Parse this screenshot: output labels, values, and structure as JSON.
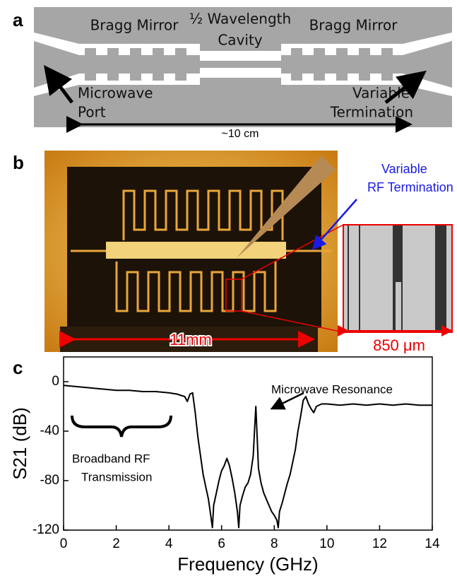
{
  "panel_a": {
    "label": "a",
    "left_mirror": "Bragg Mirror",
    "cavity": [
      "½ Wavelength",
      "Cavity"
    ],
    "right_mirror": "Bragg Mirror",
    "port": [
      "Microwave",
      "Port"
    ],
    "termination": [
      "Variable",
      "Termination"
    ],
    "length": "~10 cm"
  },
  "panel_b": {
    "label": "b",
    "termination": [
      "Variable",
      "RF Termination"
    ],
    "chip_size": "11mm",
    "zoom_size": "850 μm"
  },
  "chart_data": {
    "type": "line",
    "panel_label": "c",
    "xlabel": "Frequency (GHz)",
    "ylabel": "S21 (dB)",
    "color": "#000000",
    "annotations": [
      "Microwave Resonance",
      "Broadband RF",
      "Transmission"
    ],
    "xlim": [
      0,
      14
    ],
    "ylim": [
      -120,
      20
    ],
    "xticks": [
      0,
      2,
      4,
      6,
      8,
      10,
      12,
      14
    ],
    "yticks": [
      -120,
      -80,
      -40,
      0
    ],
    "x": [
      0,
      0.5,
      1,
      1.5,
      2,
      2.5,
      3,
      3.5,
      4,
      4.3,
      4.6,
      4.7,
      4.8,
      4.9,
      5.0,
      5.1,
      5.2,
      5.3,
      5.4,
      5.5,
      5.6,
      5.65,
      5.7,
      5.8,
      5.9,
      6.0,
      6.1,
      6.2,
      6.3,
      6.4,
      6.5,
      6.6,
      6.65,
      6.7,
      6.8,
      6.9,
      7.0,
      7.1,
      7.2,
      7.25,
      7.3,
      7.35,
      7.4,
      7.5,
      7.6,
      7.7,
      7.8,
      7.9,
      8.0,
      8.1,
      8.15,
      8.2,
      8.3,
      8.4,
      8.5,
      8.6,
      8.7,
      8.8,
      8.9,
      9.0,
      9.1,
      9.2,
      9.3,
      9.4,
      9.5,
      9.6,
      9.8,
      10,
      10.5,
      11,
      11.5,
      12,
      12.5,
      13,
      13.5,
      14
    ],
    "values": [
      -3,
      -4,
      -5,
      -6,
      -7,
      -7,
      -8,
      -8,
      -9,
      -10,
      -12,
      -16,
      -10,
      -9,
      -25,
      -45,
      -60,
      -75,
      -85,
      -95,
      -110,
      -118,
      -100,
      -90,
      -80,
      -72,
      -68,
      -62,
      -68,
      -78,
      -90,
      -105,
      -118,
      -100,
      -92,
      -85,
      -82,
      -75,
      -60,
      -40,
      -20,
      -45,
      -70,
      -82,
      -90,
      -95,
      -100,
      -105,
      -108,
      -112,
      -118,
      -105,
      -98,
      -90,
      -82,
      -75,
      -65,
      -55,
      -40,
      -28,
      -15,
      -12,
      -18,
      -22,
      -25,
      -20,
      -18,
      -18,
      -19,
      -18,
      -19,
      -18,
      -19,
      -18,
      -19,
      -19
    ]
  }
}
